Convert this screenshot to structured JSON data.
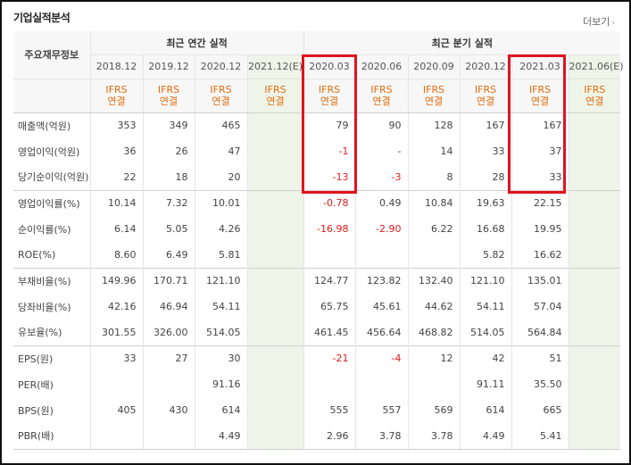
{
  "header": {
    "title": "기업실적분석",
    "more_label": "더보기",
    "more_arrow": "›"
  },
  "table": {
    "corner_label": "주요재무정보",
    "group_annual": "최근 연간 실적",
    "group_quarter": "최근 분기 실적",
    "periods": [
      "2018.12",
      "2019.12",
      "2020.12",
      "2021.12(E)",
      "2020.03",
      "2020.06",
      "2020.09",
      "2020.12",
      "2021.03",
      "2021.06(E)"
    ],
    "standard_line1": "IFRS",
    "standard_line2": "연결",
    "rows": [
      {
        "label": "매출액(억원)",
        "values": [
          "353",
          "349",
          "465",
          "",
          "79",
          "90",
          "128",
          "167",
          "167",
          ""
        ]
      },
      {
        "label": "영업이익(억원)",
        "values": [
          "36",
          "26",
          "47",
          "",
          "-1",
          "-",
          "14",
          "33",
          "37",
          ""
        ]
      },
      {
        "label": "당기순이익(억원)",
        "values": [
          "22",
          "18",
          "20",
          "",
          "-13",
          "-3",
          "8",
          "28",
          "33",
          ""
        ]
      },
      {
        "label": "영업이익률(%)",
        "values": [
          "10.14",
          "7.32",
          "10.01",
          "",
          "-0.78",
          "0.49",
          "10.84",
          "19.63",
          "22.15",
          ""
        ]
      },
      {
        "label": "순이익률(%)",
        "values": [
          "6.14",
          "5.05",
          "4.26",
          "",
          "-16.98",
          "-2.90",
          "6.22",
          "16.68",
          "19.95",
          ""
        ]
      },
      {
        "label": "ROE(%)",
        "values": [
          "8.60",
          "6.49",
          "5.81",
          "",
          "",
          "",
          "",
          "5.82",
          "16.62",
          ""
        ]
      },
      {
        "label": "부채비율(%)",
        "values": [
          "149.96",
          "170.71",
          "121.10",
          "",
          "124.77",
          "123.82",
          "132.40",
          "121.10",
          "135.01",
          ""
        ]
      },
      {
        "label": "당좌비율(%)",
        "values": [
          "42.16",
          "46.94",
          "54.11",
          "",
          "65.75",
          "45.61",
          "44.62",
          "54.11",
          "57.04",
          ""
        ]
      },
      {
        "label": "유보율(%)",
        "values": [
          "301.55",
          "326.00",
          "514.05",
          "",
          "461.45",
          "456.64",
          "468.82",
          "514.05",
          "564.84",
          ""
        ]
      },
      {
        "label": "EPS(원)",
        "values": [
          "33",
          "27",
          "30",
          "",
          "-21",
          "-4",
          "12",
          "42",
          "51",
          ""
        ]
      },
      {
        "label": "PER(배)",
        "values": [
          "",
          "",
          "91.16",
          "",
          "",
          "",
          "",
          "91.11",
          "35.50",
          ""
        ]
      },
      {
        "label": "BPS(원)",
        "values": [
          "405",
          "430",
          "614",
          "",
          "555",
          "557",
          "569",
          "614",
          "665",
          ""
        ]
      },
      {
        "label": "PBR(배)",
        "values": [
          "",
          "",
          "4.49",
          "",
          "2.96",
          "3.78",
          "3.78",
          "4.49",
          "5.41",
          ""
        ]
      }
    ]
  },
  "colors": {
    "negative": "#e01a1a",
    "ifrs": "#e56c0b",
    "estimate_bg": "#eef5e8",
    "highlight": "#e0131f"
  }
}
